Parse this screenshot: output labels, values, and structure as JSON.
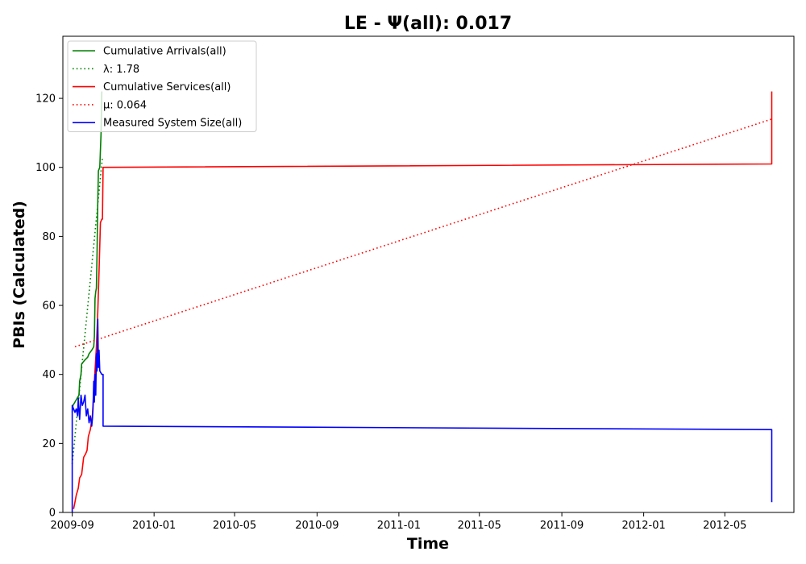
{
  "chart_data": {
    "type": "line",
    "title": "LE -  Ψ(all): 0.017",
    "xlabel": "Time",
    "ylabel": "PBIs (Calculated)",
    "xlim": [
      "2009-08-18",
      "2012-08-12"
    ],
    "ylim": [
      0,
      138
    ],
    "x_ticks": [
      "2009-09",
      "2010-01",
      "2010-05",
      "2010-09",
      "2011-01",
      "2011-05",
      "2011-09",
      "2012-01",
      "2012-05"
    ],
    "y_ticks": [
      0,
      20,
      40,
      60,
      80,
      100,
      120
    ],
    "grid": false,
    "legend_position": "top-left",
    "series": [
      {
        "name": "Cumulative Arrivals(all)",
        "color": "#008000",
        "style": "solid",
        "points": [
          [
            "2009-09-01",
            29
          ],
          [
            "2009-09-02",
            31
          ],
          [
            "2009-09-05",
            32
          ],
          [
            "2009-09-08",
            33
          ],
          [
            "2009-09-11",
            34
          ],
          [
            "2009-09-12",
            38
          ],
          [
            "2009-09-14",
            40
          ],
          [
            "2009-09-15",
            43
          ],
          [
            "2009-09-19",
            44
          ],
          [
            "2009-09-24",
            45
          ],
          [
            "2009-09-26",
            46
          ],
          [
            "2009-09-30",
            47
          ],
          [
            "2009-10-03",
            48
          ],
          [
            "2009-10-04",
            51
          ],
          [
            "2009-10-05",
            62
          ],
          [
            "2009-10-06",
            64
          ],
          [
            "2009-10-07",
            65
          ],
          [
            "2009-10-08",
            75
          ],
          [
            "2009-10-09",
            90
          ],
          [
            "2009-10-10",
            99
          ],
          [
            "2009-10-12",
            100
          ],
          [
            "2009-10-13",
            105
          ],
          [
            "2009-10-14",
            110
          ],
          [
            "2009-10-15",
            122
          ]
        ]
      },
      {
        "name": "λ: 1.78",
        "color": "#008000",
        "style": "dotted",
        "points": [
          [
            "2009-09-01",
            14
          ],
          [
            "2009-10-16",
            103
          ]
        ]
      },
      {
        "name": "Cumulative Services(all)",
        "color": "#ff0000",
        "style": "solid",
        "points": [
          [
            "2009-09-03",
            1
          ],
          [
            "2009-09-05",
            3
          ],
          [
            "2009-09-07",
            5
          ],
          [
            "2009-09-10",
            7
          ],
          [
            "2009-09-12",
            10
          ],
          [
            "2009-09-15",
            11
          ],
          [
            "2009-09-18",
            16
          ],
          [
            "2009-09-21",
            17
          ],
          [
            "2009-09-23",
            18
          ],
          [
            "2009-09-25",
            22
          ],
          [
            "2009-09-28",
            24
          ],
          [
            "2009-10-01",
            28
          ],
          [
            "2009-10-04",
            38
          ],
          [
            "2009-10-07",
            48
          ],
          [
            "2009-10-09",
            58
          ],
          [
            "2009-10-11",
            70
          ],
          [
            "2009-10-13",
            84
          ],
          [
            "2009-10-15",
            85
          ],
          [
            "2009-10-16",
            85
          ],
          [
            "2009-10-17",
            100
          ],
          [
            "2012-07-10",
            101
          ],
          [
            "2012-07-10",
            122
          ]
        ]
      },
      {
        "name": "μ: 0.064",
        "color": "#ff0000",
        "style": "dotted",
        "points": [
          [
            "2009-09-05",
            48
          ],
          [
            "2012-07-10",
            114
          ]
        ]
      },
      {
        "name": "Measured System Size(all)",
        "color": "#0000ff",
        "style": "solid",
        "points": [
          [
            "2009-09-01",
            0
          ],
          [
            "2009-09-01",
            31
          ],
          [
            "2009-09-03",
            30
          ],
          [
            "2009-09-05",
            29
          ],
          [
            "2009-09-07",
            30
          ],
          [
            "2009-09-09",
            28
          ],
          [
            "2009-09-10",
            33
          ],
          [
            "2009-09-12",
            27
          ],
          [
            "2009-09-14",
            34
          ],
          [
            "2009-09-16",
            31
          ],
          [
            "2009-09-18",
            32
          ],
          [
            "2009-09-20",
            34
          ],
          [
            "2009-09-22",
            28
          ],
          [
            "2009-09-24",
            30
          ],
          [
            "2009-09-26",
            26
          ],
          [
            "2009-09-28",
            28
          ],
          [
            "2009-09-30",
            25
          ],
          [
            "2009-10-01",
            27
          ],
          [
            "2009-10-02",
            30
          ],
          [
            "2009-10-03",
            38
          ],
          [
            "2009-10-04",
            32
          ],
          [
            "2009-10-05",
            40
          ],
          [
            "2009-10-06",
            34
          ],
          [
            "2009-10-07",
            46
          ],
          [
            "2009-10-08",
            41
          ],
          [
            "2009-10-09",
            56
          ],
          [
            "2009-10-10",
            42
          ],
          [
            "2009-10-11",
            47
          ],
          [
            "2009-10-12",
            41
          ],
          [
            "2009-10-15",
            40
          ],
          [
            "2009-10-17",
            40
          ],
          [
            "2009-10-17",
            25
          ],
          [
            "2012-07-10",
            24
          ],
          [
            "2012-07-10",
            3
          ]
        ]
      }
    ]
  }
}
